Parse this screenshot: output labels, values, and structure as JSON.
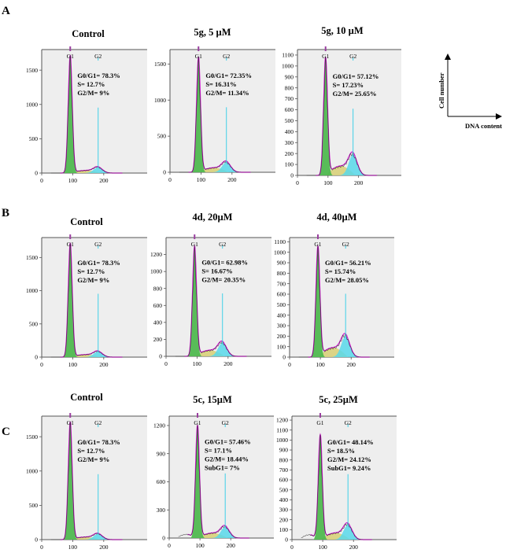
{
  "colors": {
    "g1_fill": "#4fb84f",
    "s_fill": "#d8d07a",
    "g2_fill": "#58d8ea",
    "fit_line": "#d21fd2",
    "marker_line": "#3fd0e8",
    "g1_marker": "#9a3fa0",
    "data_line": "#111111",
    "plot_bg": "#eeeeee"
  },
  "chart_data": [
    {
      "type": "area",
      "row": "A",
      "title": "Control",
      "ylim": [
        0,
        1800
      ],
      "yticks": [
        0,
        500,
        1000,
        1500
      ],
      "xlim": [
        0,
        340
      ],
      "xticks": [
        0,
        100,
        200
      ],
      "g1_peak": 1720,
      "g2_peak": 85,
      "stats": [
        "G0/G1= 78.3%",
        "S= 12.7%",
        "G2/M= 9%"
      ],
      "peak_labels": [
        "G1",
        "G2"
      ]
    },
    {
      "type": "area",
      "row": "A",
      "title": "5g, 5 µM",
      "ylim": [
        0,
        1700
      ],
      "yticks": [
        0,
        500,
        1000,
        1500
      ],
      "xlim": [
        0,
        340
      ],
      "xticks": [
        0,
        100,
        200
      ],
      "g1_peak": 1600,
      "g2_peak": 140,
      "stats": [
        "G0/G1= 72.35%",
        "S= 16.31%",
        "G2/M= 11.34%"
      ],
      "peak_labels": [
        "G1",
        "G2"
      ]
    },
    {
      "type": "area",
      "row": "A",
      "title": "5g, 10 µM",
      "ylim": [
        0,
        1150
      ],
      "yticks": [
        0,
        100,
        200,
        300,
        400,
        500,
        600,
        700,
        800,
        900,
        1000,
        1100
      ],
      "xlim": [
        0,
        340
      ],
      "xticks": [
        0,
        100,
        200
      ],
      "g1_peak": 1080,
      "g2_peak": 190,
      "stats": [
        "G0/G1= 57.12%",
        "S= 17.23%",
        "G2/M= 25.65%"
      ],
      "peak_labels": [
        "G1",
        "G2"
      ]
    },
    {
      "type": "area",
      "row": "B",
      "title": "Control",
      "ylim": [
        0,
        1800
      ],
      "yticks": [
        0,
        500,
        1000,
        1500
      ],
      "xlim": [
        0,
        340
      ],
      "xticks": [
        0,
        100,
        200
      ],
      "g1_peak": 1720,
      "g2_peak": 85,
      "stats": [
        "G0/G1= 78.3%",
        "S= 12.7%",
        "G2/M= 9%"
      ],
      "peak_labels": [
        "G1",
        "G2"
      ]
    },
    {
      "type": "area",
      "row": "B",
      "title": "4d, 20µM",
      "ylim": [
        0,
        1400
      ],
      "yticks": [
        0,
        200,
        400,
        600,
        800,
        1000,
        1200
      ],
      "xlim": [
        0,
        340
      ],
      "xticks": [
        0,
        100,
        200
      ],
      "g1_peak": 1300,
      "g2_peak": 160,
      "stats": [
        "G0/G1= 62.98%",
        "S= 16.67%",
        "G2/M= 20.35%"
      ],
      "peak_labels": [
        "G1",
        "G2"
      ]
    },
    {
      "type": "area",
      "row": "B",
      "title": "4d, 40µM",
      "ylim": [
        0,
        1140
      ],
      "yticks": [
        0,
        100,
        200,
        300,
        400,
        500,
        600,
        700,
        800,
        900,
        1000,
        1100
      ],
      "xlim": [
        0,
        340
      ],
      "xticks": [
        0,
        100,
        200
      ],
      "g1_peak": 1060,
      "g2_peak": 200,
      "stats": [
        "G0/G1= 56.21%",
        "S= 15.74%",
        "G2/M= 28.05%"
      ],
      "peak_labels": [
        "G1",
        "G2"
      ]
    },
    {
      "type": "area",
      "row": "C",
      "title": "Control",
      "ylim": [
        0,
        1800
      ],
      "yticks": [
        0,
        500,
        1000,
        1500
      ],
      "xlim": [
        0,
        340
      ],
      "xticks": [
        0,
        100,
        200
      ],
      "g1_peak": 1720,
      "g2_peak": 85,
      "stats": [
        "G0/G1= 78.3%",
        "S= 12.7%",
        "G2/M= 9%"
      ],
      "peak_labels": [
        "G1",
        "G2"
      ]
    },
    {
      "type": "area",
      "row": "C",
      "title": "5c, 15µM",
      "ylim": [
        0,
        1300
      ],
      "yticks": [
        0,
        300,
        600,
        900,
        1200
      ],
      "xlim": [
        0,
        340
      ],
      "xticks": [
        0,
        100,
        200
      ],
      "g1_peak": 1200,
      "g2_peak": 120,
      "stats": [
        "G0/G1= 57.46%",
        "S= 17.1%",
        "G2/M= 18.44%",
        "SubG1= 7%"
      ],
      "peak_labels": [
        "G1",
        "G2"
      ]
    },
    {
      "type": "area",
      "row": "C",
      "title": "5c, 25µM",
      "ylim": [
        0,
        1240
      ],
      "yticks": [
        0,
        100,
        200,
        300,
        400,
        500,
        600,
        700,
        800,
        900,
        1000,
        1100,
        1200
      ],
      "xlim": [
        0,
        340
      ],
      "xticks": [
        0,
        100,
        200
      ],
      "g1_peak": 1050,
      "g2_peak": 150,
      "stats": [
        "G0/G1= 48.14%",
        "S= 18.5%",
        "G2/M= 24.12%",
        "SubG1= 9.24%"
      ],
      "peak_labels": [
        "G1",
        "G2"
      ]
    }
  ],
  "row_labels": [
    "A",
    "B",
    "C"
  ],
  "legend": {
    "y_label": "Cell number",
    "x_label": "DNA content"
  }
}
